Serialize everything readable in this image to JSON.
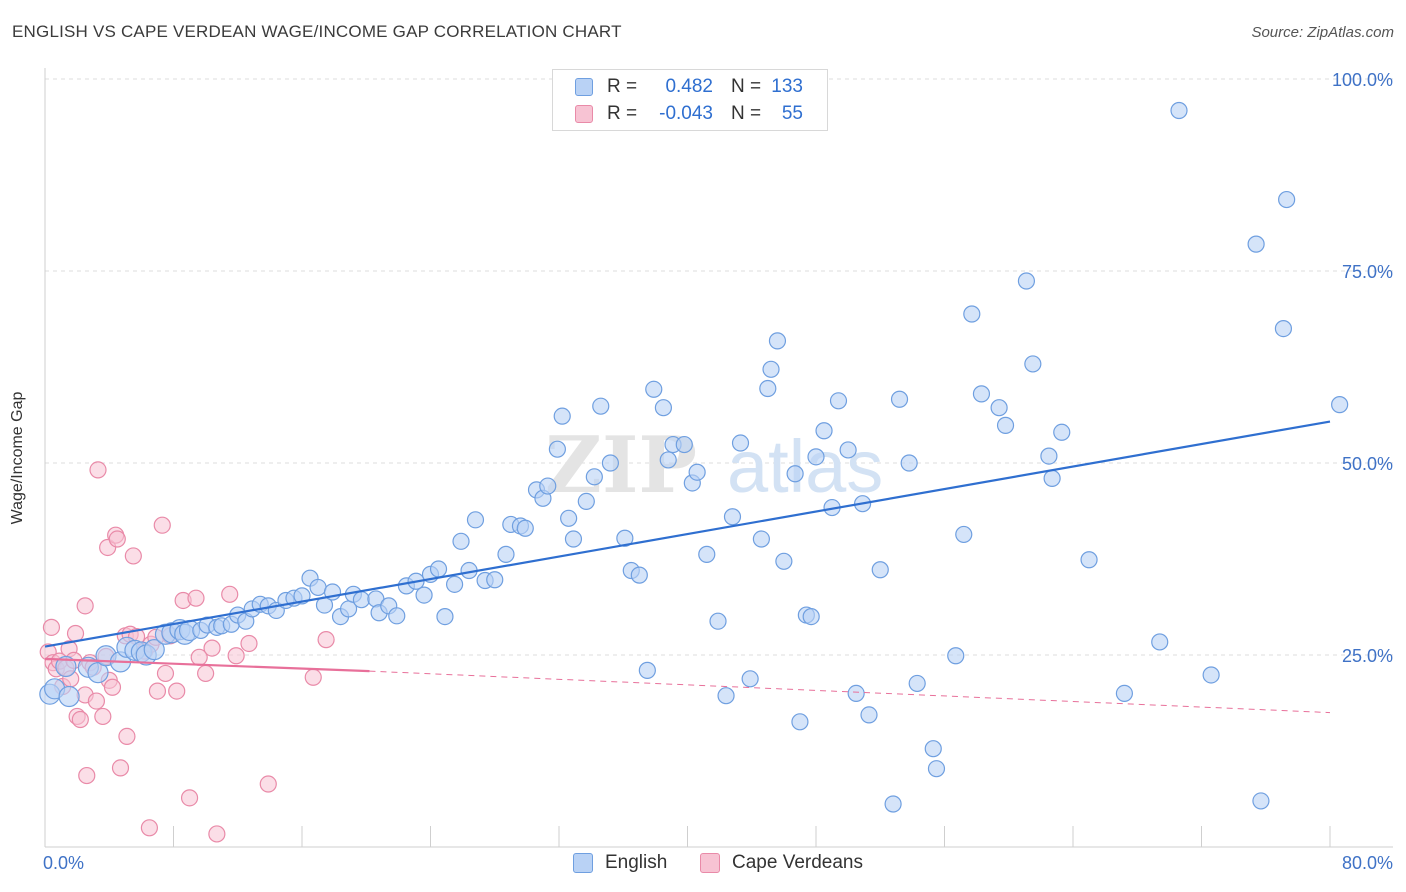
{
  "header": {
    "title": "ENGLISH VS CAPE VERDEAN WAGE/INCOME GAP CORRELATION CHART",
    "source": "Source: ZipAtlas.com"
  },
  "watermark": {
    "zip": "ZIP",
    "atlas": "atlas"
  },
  "colors": {
    "english_fill": "#b9d2f5",
    "english_stroke": "#6f9fe0",
    "english_line": "#2f6fd0",
    "cape_fill": "#f7c3d3",
    "cape_stroke": "#e98aa8",
    "cape_line": "#e8709a",
    "axis_label": "#3f72c6",
    "grid": "#dcdcdc"
  },
  "legend_top": {
    "rows": [
      {
        "r_label": "R =",
        "r_value": "0.482",
        "n_label": "N =",
        "n_value": "133"
      },
      {
        "r_label": "R =",
        "r_value": "-0.043",
        "n_label": "N =",
        "n_value": "55"
      }
    ]
  },
  "legend_bottom": {
    "english": "English",
    "cape": "Cape Verdeans"
  },
  "chart_data": {
    "type": "scatter",
    "title": "ENGLISH VS CAPE VERDEAN WAGE/INCOME GAP CORRELATION CHART",
    "ylabel": "Wage/Income Gap",
    "xlim": [
      0,
      80
    ],
    "ylim": [
      0,
      100
    ],
    "x_tick_labels": [
      {
        "value": 0,
        "label": "0.0%"
      },
      {
        "value": 80,
        "label": "80.0%"
      }
    ],
    "y_tick_labels": [
      {
        "value": 25,
        "label": "25.0%"
      },
      {
        "value": 50,
        "label": "50.0%"
      },
      {
        "value": 75,
        "label": "75.0%"
      },
      {
        "value": 100,
        "label": "100.0%"
      }
    ],
    "grid": "horizontal dashed",
    "legend": "top-center",
    "series": [
      {
        "name": "English",
        "R": 0.482,
        "N": 133,
        "trend": {
          "x": [
            0,
            80
          ],
          "y": [
            26.1,
            55.4
          ]
        },
        "points": [
          [
            0.3,
            19.9
          ],
          [
            0.6,
            20.6
          ],
          [
            1.3,
            23.5
          ],
          [
            1.5,
            19.6
          ],
          [
            2.7,
            23.4
          ],
          [
            3.3,
            22.7
          ],
          [
            3.8,
            24.9
          ],
          [
            4.7,
            24.1
          ],
          [
            5.1,
            26.0
          ],
          [
            5.6,
            25.6
          ],
          [
            6.0,
            25.4
          ],
          [
            6.3,
            25.0
          ],
          [
            6.8,
            25.7
          ],
          [
            7.5,
            27.7
          ],
          [
            7.9,
            27.9
          ],
          [
            8.4,
            28.3
          ],
          [
            8.7,
            27.7
          ],
          [
            9.0,
            28.2
          ],
          [
            9.7,
            28.2
          ],
          [
            10.1,
            28.9
          ],
          [
            10.7,
            28.6
          ],
          [
            11.0,
            28.8
          ],
          [
            11.6,
            29.0
          ],
          [
            12.0,
            30.2
          ],
          [
            12.5,
            29.4
          ],
          [
            12.9,
            31.0
          ],
          [
            13.4,
            31.6
          ],
          [
            13.9,
            31.4
          ],
          [
            14.4,
            30.8
          ],
          [
            15.0,
            32.1
          ],
          [
            15.5,
            32.4
          ],
          [
            16.0,
            32.7
          ],
          [
            16.5,
            35.0
          ],
          [
            17.0,
            33.8
          ],
          [
            17.4,
            31.5
          ],
          [
            17.9,
            33.2
          ],
          [
            18.4,
            30.0
          ],
          [
            18.9,
            31.0
          ],
          [
            19.2,
            32.9
          ],
          [
            19.7,
            32.2
          ],
          [
            20.6,
            32.3
          ],
          [
            20.8,
            30.5
          ],
          [
            21.4,
            31.4
          ],
          [
            21.9,
            30.1
          ],
          [
            22.5,
            34.0
          ],
          [
            23.1,
            34.6
          ],
          [
            23.6,
            32.8
          ],
          [
            24.0,
            35.5
          ],
          [
            24.5,
            36.2
          ],
          [
            24.9,
            30.0
          ],
          [
            25.5,
            34.2
          ],
          [
            25.9,
            39.8
          ],
          [
            26.4,
            36.0
          ],
          [
            26.8,
            42.6
          ],
          [
            27.4,
            34.7
          ],
          [
            28.0,
            34.8
          ],
          [
            28.7,
            38.1
          ],
          [
            29.0,
            42.0
          ],
          [
            29.6,
            41.8
          ],
          [
            29.9,
            41.5
          ],
          [
            30.6,
            46.5
          ],
          [
            31.0,
            45.4
          ],
          [
            31.3,
            47.0
          ],
          [
            31.9,
            51.8
          ],
          [
            32.2,
            56.1
          ],
          [
            32.6,
            42.8
          ],
          [
            32.9,
            40.1
          ],
          [
            33.7,
            45.0
          ],
          [
            34.2,
            48.2
          ],
          [
            34.6,
            57.4
          ],
          [
            35.2,
            50.0
          ],
          [
            36.1,
            40.2
          ],
          [
            36.5,
            36.0
          ],
          [
            37.0,
            35.4
          ],
          [
            37.5,
            23.0
          ],
          [
            37.9,
            59.6
          ],
          [
            38.5,
            57.2
          ],
          [
            38.8,
            50.4
          ],
          [
            39.1,
            52.4
          ],
          [
            39.8,
            52.4
          ],
          [
            40.3,
            47.4
          ],
          [
            40.6,
            48.8
          ],
          [
            41.2,
            38.1
          ],
          [
            41.9,
            29.4
          ],
          [
            42.4,
            19.7
          ],
          [
            42.8,
            43.0
          ],
          [
            43.3,
            52.6
          ],
          [
            43.9,
            21.9
          ],
          [
            44.6,
            40.1
          ],
          [
            45.0,
            59.7
          ],
          [
            45.2,
            62.2
          ],
          [
            45.6,
            65.9
          ],
          [
            46.0,
            37.2
          ],
          [
            46.7,
            48.6
          ],
          [
            47.0,
            16.3
          ],
          [
            47.4,
            30.2
          ],
          [
            47.7,
            30.0
          ],
          [
            48.0,
            50.8
          ],
          [
            48.5,
            54.2
          ],
          [
            49.0,
            44.2
          ],
          [
            49.4,
            58.1
          ],
          [
            50.0,
            51.7
          ],
          [
            50.5,
            20.0
          ],
          [
            50.9,
            44.7
          ],
          [
            51.3,
            17.2
          ],
          [
            52.0,
            36.1
          ],
          [
            52.8,
            5.6
          ],
          [
            53.2,
            58.3
          ],
          [
            53.8,
            50.0
          ],
          [
            54.3,
            21.3
          ],
          [
            55.3,
            12.8
          ],
          [
            55.5,
            10.2
          ],
          [
            56.7,
            24.9
          ],
          [
            57.2,
            40.7
          ],
          [
            57.7,
            69.4
          ],
          [
            58.3,
            59.0
          ],
          [
            59.4,
            57.2
          ],
          [
            59.8,
            54.9
          ],
          [
            61.1,
            73.7
          ],
          [
            61.5,
            62.9
          ],
          [
            62.5,
            50.9
          ],
          [
            62.7,
            48.0
          ],
          [
            63.3,
            54.0
          ],
          [
            65.0,
            37.4
          ],
          [
            67.2,
            20.0
          ],
          [
            69.4,
            26.7
          ],
          [
            70.6,
            95.9
          ],
          [
            72.6,
            22.4
          ],
          [
            75.4,
            78.5
          ],
          [
            75.7,
            6.0
          ],
          [
            77.1,
            67.5
          ],
          [
            77.3,
            84.3
          ],
          [
            80.6,
            57.6
          ]
        ]
      },
      {
        "name": "Cape Verdeans",
        "R": -0.043,
        "N": 55,
        "trend": {
          "x": [
            0,
            20.2
          ],
          "y": [
            24.5,
            22.9
          ]
        },
        "trend_extension": {
          "x": [
            20.2,
            80
          ],
          "y": [
            22.9,
            17.5
          ]
        },
        "points": [
          [
            0.2,
            25.4
          ],
          [
            0.4,
            28.6
          ],
          [
            0.5,
            24.0
          ],
          [
            0.7,
            23.2
          ],
          [
            0.9,
            24.2
          ],
          [
            1.1,
            20.9
          ],
          [
            1.3,
            23.3
          ],
          [
            1.5,
            25.8
          ],
          [
            1.6,
            21.9
          ],
          [
            1.8,
            24.3
          ],
          [
            1.9,
            27.8
          ],
          [
            2.0,
            17.0
          ],
          [
            2.2,
            16.6
          ],
          [
            2.5,
            19.8
          ],
          [
            2.5,
            31.4
          ],
          [
            2.6,
            9.3
          ],
          [
            2.8,
            24.0
          ],
          [
            3.0,
            23.4
          ],
          [
            3.2,
            19.0
          ],
          [
            3.3,
            49.1
          ],
          [
            3.6,
            17.0
          ],
          [
            3.8,
            24.8
          ],
          [
            3.9,
            39.0
          ],
          [
            4.0,
            21.7
          ],
          [
            4.2,
            20.8
          ],
          [
            4.4,
            40.6
          ],
          [
            4.5,
            40.1
          ],
          [
            4.7,
            10.3
          ],
          [
            5.0,
            27.5
          ],
          [
            5.1,
            14.4
          ],
          [
            5.3,
            27.7
          ],
          [
            5.5,
            37.9
          ],
          [
            5.7,
            27.4
          ],
          [
            6.2,
            25.5
          ],
          [
            6.5,
            2.5
          ],
          [
            6.6,
            26.4
          ],
          [
            6.9,
            27.3
          ],
          [
            7.0,
            20.3
          ],
          [
            7.3,
            41.9
          ],
          [
            7.5,
            22.6
          ],
          [
            7.8,
            27.5
          ],
          [
            8.2,
            20.3
          ],
          [
            8.6,
            32.1
          ],
          [
            9.0,
            6.4
          ],
          [
            9.4,
            32.4
          ],
          [
            9.6,
            24.7
          ],
          [
            10.0,
            22.6
          ],
          [
            10.4,
            25.9
          ],
          [
            10.7,
            1.7
          ],
          [
            11.5,
            32.9
          ],
          [
            11.9,
            24.9
          ],
          [
            12.7,
            26.5
          ],
          [
            13.9,
            8.2
          ],
          [
            16.7,
            22.1
          ],
          [
            17.5,
            27.0
          ]
        ]
      }
    ]
  }
}
